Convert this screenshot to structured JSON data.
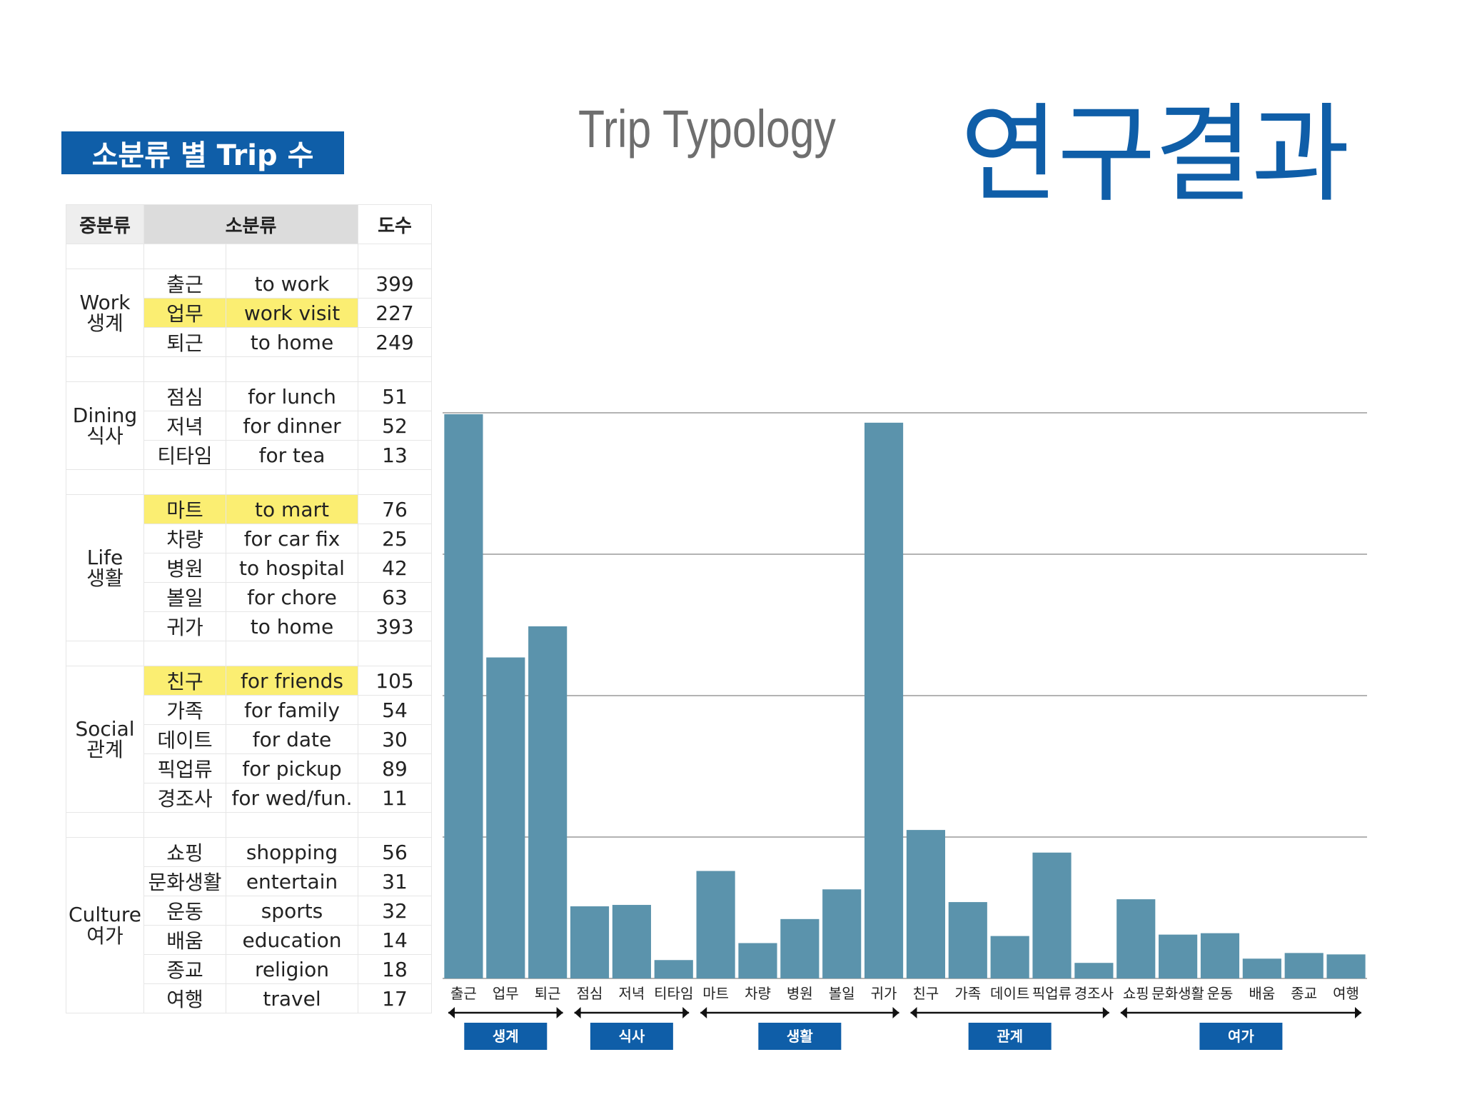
{
  "page_title": "연구결과",
  "section_badge": "소분류 별 Trip 수",
  "table": {
    "headers": [
      "중분류",
      "소분류",
      "도수"
    ],
    "groups": [
      {
        "name_en": "Work",
        "name_ko": "생계",
        "rows": [
          {
            "ko": "출근",
            "en": "to work",
            "count": "399",
            "highlight": false
          },
          {
            "ko": "업무",
            "en": "work visit",
            "count": "227",
            "highlight": true
          },
          {
            "ko": "퇴근",
            "en": "to home",
            "count": "249",
            "highlight": false
          }
        ]
      },
      {
        "name_en": "Dining",
        "name_ko": "식사",
        "rows": [
          {
            "ko": "점심",
            "en": "for lunch",
            "count": "51",
            "highlight": false
          },
          {
            "ko": "저녁",
            "en": "for dinner",
            "count": "52",
            "highlight": false
          },
          {
            "ko": "티타임",
            "en": "for tea",
            "count": "13",
            "highlight": false
          }
        ]
      },
      {
        "name_en": "Life",
        "name_ko": "생활",
        "rows": [
          {
            "ko": "마트",
            "en": "to mart",
            "count": "76",
            "highlight": true
          },
          {
            "ko": "차량",
            "en": "for car fix",
            "count": "25",
            "highlight": false
          },
          {
            "ko": "병원",
            "en": "to hospital",
            "count": "42",
            "highlight": false
          },
          {
            "ko": "볼일",
            "en": "for chore",
            "count": "63",
            "highlight": false
          },
          {
            "ko": "귀가",
            "en": "to home",
            "count": "393",
            "highlight": false
          }
        ]
      },
      {
        "name_en": "Social",
        "name_ko": "관계",
        "rows": [
          {
            "ko": "친구",
            "en": "for friends",
            "count": "105",
            "highlight": true
          },
          {
            "ko": "가족",
            "en": "for family",
            "count": "54",
            "highlight": false
          },
          {
            "ko": "데이트",
            "en": "for date",
            "count": "30",
            "highlight": false
          },
          {
            "ko": "픽업류",
            "en": "for pickup",
            "count": "89",
            "highlight": false
          },
          {
            "ko": "경조사",
            "en": "for wed/fun.",
            "count": "11",
            "highlight": false
          }
        ]
      },
      {
        "name_en": "Culture",
        "name_ko": "여가",
        "rows": [
          {
            "ko": "쇼핑",
            "en": "shopping",
            "count": "56",
            "highlight": false
          },
          {
            "ko": "문화생활",
            "en": "entertain",
            "count": "31",
            "highlight": false
          },
          {
            "ko": "운동",
            "en": "sports",
            "count": "32",
            "highlight": false
          },
          {
            "ko": "배움",
            "en": "education",
            "count": "14",
            "highlight": false
          },
          {
            "ko": "종교",
            "en": "religion",
            "count": "18",
            "highlight": false
          },
          {
            "ko": "여행",
            "en": "travel",
            "count": "17",
            "highlight": false
          }
        ]
      }
    ]
  },
  "chart_data": {
    "type": "bar",
    "title": "Trip Typology",
    "xlabel": "",
    "ylabel": "",
    "ylim": [
      0,
      400
    ],
    "gridlines": [
      100,
      200,
      300,
      400
    ],
    "grid": true,
    "bar_color": "#5b93ac",
    "categories": [
      "출근",
      "업무",
      "퇴근",
      "점심",
      "저녁",
      "티타임",
      "마트",
      "차량",
      "병원",
      "볼일",
      "귀가",
      "친구",
      "가족",
      "데이트",
      "픽업류",
      "경조사",
      "쇼핑",
      "문화생활",
      "운동",
      "배움",
      "종교",
      "여행"
    ],
    "values": [
      399,
      227,
      249,
      51,
      52,
      13,
      76,
      25,
      42,
      63,
      393,
      105,
      54,
      30,
      89,
      11,
      56,
      31,
      32,
      14,
      18,
      17
    ],
    "groups": [
      {
        "label": "생계",
        "start": 0,
        "end": 2
      },
      {
        "label": "식사",
        "start": 3,
        "end": 5
      },
      {
        "label": "생활",
        "start": 6,
        "end": 10
      },
      {
        "label": "관계",
        "start": 11,
        "end": 15
      },
      {
        "label": "여가",
        "start": 16,
        "end": 21
      }
    ],
    "group_color": "#0f5ea8"
  }
}
